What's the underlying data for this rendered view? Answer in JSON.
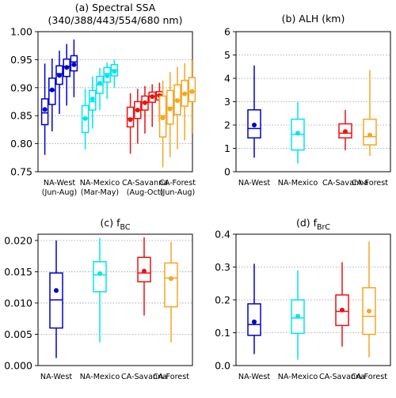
{
  "chart_data": [
    {
      "type": "boxplot",
      "title_line1": "(a) Spectral SSA",
      "title_line2": "(340/388/443/554/680 nm)",
      "ylim": [
        0.75,
        1.0
      ],
      "yticks": [
        "0.75",
        "0.80",
        "0.85",
        "0.90",
        "0.95",
        "1.00"
      ],
      "ytick_values": [
        0.75,
        0.8,
        0.85,
        0.9,
        0.95,
        1.0
      ],
      "grid": "horizontal dotted",
      "groups": [
        {
          "name": "NA-West",
          "sub": "(Jun-Aug)",
          "color": "#0000cc",
          "boxes": [
            {
              "wmin": 0.78,
              "q1": 0.834,
              "median": 0.855,
              "q3": 0.88,
              "wmax": 0.943,
              "mean": 0.861
            },
            {
              "wmin": 0.822,
              "q1": 0.87,
              "median": 0.895,
              "q3": 0.917,
              "wmax": 0.952,
              "mean": 0.896
            },
            {
              "wmin": 0.853,
              "q1": 0.906,
              "median": 0.925,
              "q3": 0.939,
              "wmax": 0.966,
              "mean": 0.922
            },
            {
              "wmin": 0.868,
              "q1": 0.92,
              "median": 0.938,
              "q3": 0.951,
              "wmax": 0.978,
              "mean": 0.936
            },
            {
              "wmin": 0.883,
              "q1": 0.93,
              "median": 0.946,
              "q3": 0.957,
              "wmax": 0.986,
              "mean": 0.941
            }
          ]
        },
        {
          "name": "NA-Mexico",
          "sub": "(Mar-May)",
          "color": "#00e5ee",
          "boxes": [
            {
              "wmin": 0.79,
              "q1": 0.82,
              "median": 0.845,
              "q3": 0.868,
              "wmax": 0.898,
              "mean": 0.845
            },
            {
              "wmin": 0.827,
              "q1": 0.86,
              "median": 0.875,
              "q3": 0.895,
              "wmax": 0.92,
              "mean": 0.88
            },
            {
              "wmin": 0.86,
              "q1": 0.89,
              "median": 0.905,
              "q3": 0.92,
              "wmax": 0.935,
              "mean": 0.908
            },
            {
              "wmin": 0.88,
              "q1": 0.91,
              "median": 0.925,
              "q3": 0.936,
              "wmax": 0.945,
              "mean": 0.921
            },
            {
              "wmin": 0.9,
              "q1": 0.921,
              "median": 0.932,
              "q3": 0.941,
              "wmax": 0.95,
              "mean": 0.929
            }
          ]
        },
        {
          "name": "CA-Savanna",
          "sub": "(Aug-Oct)",
          "color": "#ee1111",
          "boxes": [
            {
              "wmin": 0.782,
              "q1": 0.83,
              "median": 0.845,
              "q3": 0.865,
              "wmax": 0.89,
              "mean": 0.843
            },
            {
              "wmin": 0.8,
              "q1": 0.845,
              "median": 0.86,
              "q3": 0.875,
              "wmax": 0.898,
              "mean": 0.86
            },
            {
              "wmin": 0.818,
              "q1": 0.86,
              "median": 0.874,
              "q3": 0.885,
              "wmax": 0.903,
              "mean": 0.873
            },
            {
              "wmin": 0.83,
              "q1": 0.874,
              "median": 0.885,
              "q3": 0.892,
              "wmax": 0.906,
              "mean": 0.884
            },
            {
              "wmin": 0.84,
              "q1": 0.878,
              "median": 0.887,
              "q3": 0.893,
              "wmax": 0.909,
              "mean": 0.886
            }
          ]
        },
        {
          "name": "CA-Forest",
          "sub": "(Jun-Aug)",
          "color": "#f5a623",
          "boxes": [
            {
              "wmin": 0.758,
              "q1": 0.812,
              "median": 0.85,
              "q3": 0.885,
              "wmax": 0.913,
              "mean": 0.846
            },
            {
              "wmin": 0.776,
              "q1": 0.835,
              "median": 0.865,
              "q3": 0.895,
              "wmax": 0.928,
              "mean": 0.862
            },
            {
              "wmin": 0.79,
              "q1": 0.852,
              "median": 0.878,
              "q3": 0.905,
              "wmax": 0.937,
              "mean": 0.877
            },
            {
              "wmin": 0.806,
              "q1": 0.867,
              "median": 0.89,
              "q3": 0.913,
              "wmax": 0.944,
              "mean": 0.889
            },
            {
              "wmin": 0.818,
              "q1": 0.875,
              "median": 0.893,
              "q3": 0.918,
              "wmax": 0.95,
              "mean": 0.893
            }
          ]
        }
      ]
    },
    {
      "type": "boxplot",
      "title_line1": "(b) ALH (km)",
      "title_line2": "",
      "ylim": [
        0,
        6
      ],
      "yticks": [
        "0",
        "1",
        "2",
        "3",
        "4",
        "5",
        "6"
      ],
      "ytick_values": [
        0,
        1,
        2,
        3,
        4,
        5,
        6
      ],
      "grid": "horizontal dotted",
      "groups": [
        {
          "name": "NA-West",
          "sub": "",
          "color": "#0000cc",
          "boxes": [
            {
              "wmin": 0.6,
              "q1": 1.45,
              "median": 1.85,
              "q3": 2.65,
              "wmax": 4.55,
              "mean": 2.0
            }
          ]
        },
        {
          "name": "NA-Mexico",
          "sub": "",
          "color": "#00e5ee",
          "boxes": [
            {
              "wmin": 0.35,
              "q1": 0.93,
              "median": 1.6,
              "q3": 2.25,
              "wmax": 3.0,
              "mean": 1.65
            }
          ]
        },
        {
          "name": "CA-Savanna",
          "sub": "",
          "color": "#ee1111",
          "boxes": [
            {
              "wmin": 0.92,
              "q1": 1.45,
              "median": 1.65,
              "q3": 2.05,
              "wmax": 2.65,
              "mean": 1.72
            }
          ]
        },
        {
          "name": "CA-Forest",
          "sub": "",
          "color": "#f5a623",
          "boxes": [
            {
              "wmin": 0.68,
              "q1": 1.15,
              "median": 1.5,
              "q3": 2.25,
              "wmax": 4.35,
              "mean": 1.57
            }
          ]
        }
      ]
    },
    {
      "type": "boxplot",
      "title_line1": "(c) f",
      "title_sub": "BC",
      "title_line2": "",
      "ylim": [
        0,
        0.021
      ],
      "yticks": [
        "0.000",
        "0.005",
        "0.010",
        "0.015",
        "0.020"
      ],
      "ytick_values": [
        0.0,
        0.005,
        0.01,
        0.015,
        0.02
      ],
      "grid": "horizontal dotted",
      "groups": [
        {
          "name": "NA-West",
          "sub": "",
          "color": "#0000cc",
          "boxes": [
            {
              "wmin": 0.0012,
              "q1": 0.006,
              "median": 0.0105,
              "q3": 0.0148,
              "wmax": 0.02,
              "mean": 0.012
            }
          ]
        },
        {
          "name": "NA-Mexico",
          "sub": "",
          "color": "#00e5ee",
          "boxes": [
            {
              "wmin": 0.0037,
              "q1": 0.0118,
              "median": 0.0145,
              "q3": 0.0166,
              "wmax": 0.0204,
              "mean": 0.0147
            }
          ]
        },
        {
          "name": "CA-Savanna",
          "sub": "",
          "color": "#ee1111",
          "boxes": [
            {
              "wmin": 0.008,
              "q1": 0.0134,
              "median": 0.0148,
              "q3": 0.0173,
              "wmax": 0.0205,
              "mean": 0.0151
            }
          ]
        },
        {
          "name": "CA-Forest",
          "sub": "",
          "color": "#f5a623",
          "boxes": [
            {
              "wmin": 0.0037,
              "q1": 0.0094,
              "median": 0.014,
              "q3": 0.0164,
              "wmax": 0.0198,
              "mean": 0.0139
            }
          ]
        }
      ]
    },
    {
      "type": "boxplot",
      "title_line1": "(d) f",
      "title_sub": "BrC",
      "title_line2": "",
      "ylim": [
        0,
        0.4
      ],
      "yticks": [
        "0.0",
        "0.1",
        "0.2",
        "0.3",
        "0.4"
      ],
      "ytick_values": [
        0.0,
        0.1,
        0.2,
        0.3,
        0.4
      ],
      "grid": "horizontal dotted",
      "groups": [
        {
          "name": "NA-West",
          "sub": "",
          "color": "#0000cc",
          "boxes": [
            {
              "wmin": 0.035,
              "q1": 0.092,
              "median": 0.125,
              "q3": 0.188,
              "wmax": 0.31,
              "mean": 0.133
            }
          ]
        },
        {
          "name": "NA-Mexico",
          "sub": "",
          "color": "#00e5ee",
          "boxes": [
            {
              "wmin": 0.018,
              "q1": 0.098,
              "median": 0.145,
              "q3": 0.2,
              "wmax": 0.29,
              "mean": 0.15
            }
          ]
        },
        {
          "name": "CA-Savanna",
          "sub": "",
          "color": "#ee1111",
          "boxes": [
            {
              "wmin": 0.058,
              "q1": 0.122,
              "median": 0.165,
              "q3": 0.215,
              "wmax": 0.315,
              "mean": 0.169
            }
          ]
        },
        {
          "name": "CA-Forest",
          "sub": "",
          "color": "#f5a623",
          "boxes": [
            {
              "wmin": 0.025,
              "q1": 0.095,
              "median": 0.15,
              "q3": 0.237,
              "wmax": 0.378,
              "mean": 0.166
            }
          ]
        }
      ]
    }
  ]
}
